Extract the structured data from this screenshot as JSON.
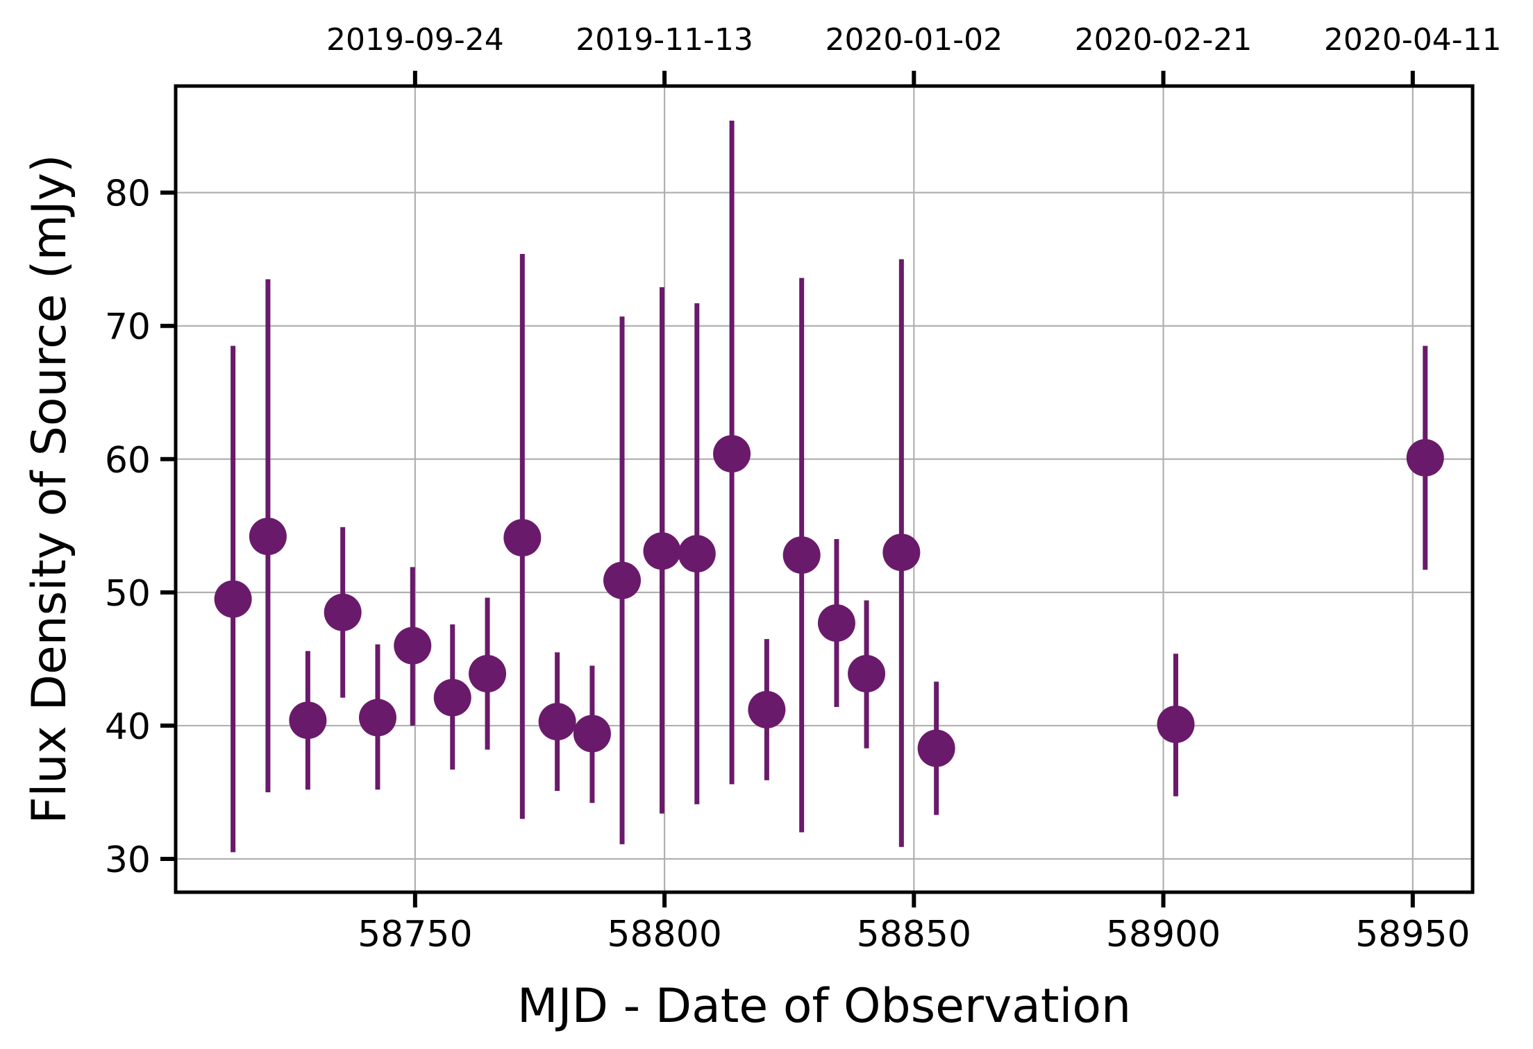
{
  "chart_data": {
    "type": "scatter",
    "title": "",
    "xlabel": "MJD - Date of Observation",
    "ylabel": "Flux Density of Source (mJy)",
    "xlim": [
      58702,
      58962
    ],
    "ylim": [
      27.5,
      88
    ],
    "grid": true,
    "legend": "none",
    "marker_color": "#6a1a6b",
    "x_ticks": [
      58750,
      58800,
      58850,
      58900,
      58950
    ],
    "x_tick_labels": [
      "58750",
      "58800",
      "58850",
      "58900",
      "58950"
    ],
    "y_ticks": [
      30,
      40,
      50,
      60,
      70,
      80
    ],
    "y_tick_labels": [
      "30",
      "40",
      "50",
      "60",
      "70",
      "80"
    ],
    "top_ticks": [
      58750,
      58800,
      58850,
      58900,
      58950
    ],
    "top_tick_labels": [
      "2019-09-24",
      "2019-11-13",
      "2020-01-02",
      "2020-02-21",
      "2020-04-11"
    ],
    "series": [
      {
        "points": [
          {
            "x": 58713.5,
            "y": 49.5,
            "ylow": 30.5,
            "yhigh": 68.5
          },
          {
            "x": 58720.5,
            "y": 54.2,
            "ylow": 35.0,
            "yhigh": 73.5
          },
          {
            "x": 58728.5,
            "y": 40.4,
            "ylow": 35.2,
            "yhigh": 45.6
          },
          {
            "x": 58735.5,
            "y": 48.5,
            "ylow": 42.1,
            "yhigh": 54.9
          },
          {
            "x": 58742.5,
            "y": 40.6,
            "ylow": 35.2,
            "yhigh": 46.1
          },
          {
            "x": 58749.5,
            "y": 46.0,
            "ylow": 40.0,
            "yhigh": 51.9
          },
          {
            "x": 58757.5,
            "y": 42.1,
            "ylow": 36.7,
            "yhigh": 47.6
          },
          {
            "x": 58764.5,
            "y": 43.9,
            "ylow": 38.2,
            "yhigh": 49.6
          },
          {
            "x": 58771.5,
            "y": 54.1,
            "ylow": 33.0,
            "yhigh": 75.4
          },
          {
            "x": 58778.5,
            "y": 40.3,
            "ylow": 35.1,
            "yhigh": 45.5
          },
          {
            "x": 58785.5,
            "y": 39.4,
            "ylow": 34.2,
            "yhigh": 44.5
          },
          {
            "x": 58791.5,
            "y": 50.9,
            "ylow": 31.1,
            "yhigh": 70.7
          },
          {
            "x": 58799.5,
            "y": 53.1,
            "ylow": 33.4,
            "yhigh": 72.9
          },
          {
            "x": 58806.5,
            "y": 52.9,
            "ylow": 34.1,
            "yhigh": 71.7
          },
          {
            "x": 58813.5,
            "y": 60.4,
            "ylow": 35.6,
            "yhigh": 85.4
          },
          {
            "x": 58820.5,
            "y": 41.2,
            "ylow": 35.9,
            "yhigh": 46.5
          },
          {
            "x": 58827.5,
            "y": 52.8,
            "ylow": 32.0,
            "yhigh": 73.6
          },
          {
            "x": 58834.5,
            "y": 47.7,
            "ylow": 41.4,
            "yhigh": 54.0
          },
          {
            "x": 58840.5,
            "y": 43.9,
            "ylow": 38.3,
            "yhigh": 49.4
          },
          {
            "x": 58847.5,
            "y": 53.0,
            "ylow": 30.9,
            "yhigh": 75.0
          },
          {
            "x": 58854.5,
            "y": 38.3,
            "ylow": 33.3,
            "yhigh": 43.3
          },
          {
            "x": 58902.5,
            "y": 40.1,
            "ylow": 34.7,
            "yhigh": 45.4
          },
          {
            "x": 58952.5,
            "y": 60.1,
            "ylow": 51.7,
            "yhigh": 68.5
          }
        ]
      }
    ]
  }
}
